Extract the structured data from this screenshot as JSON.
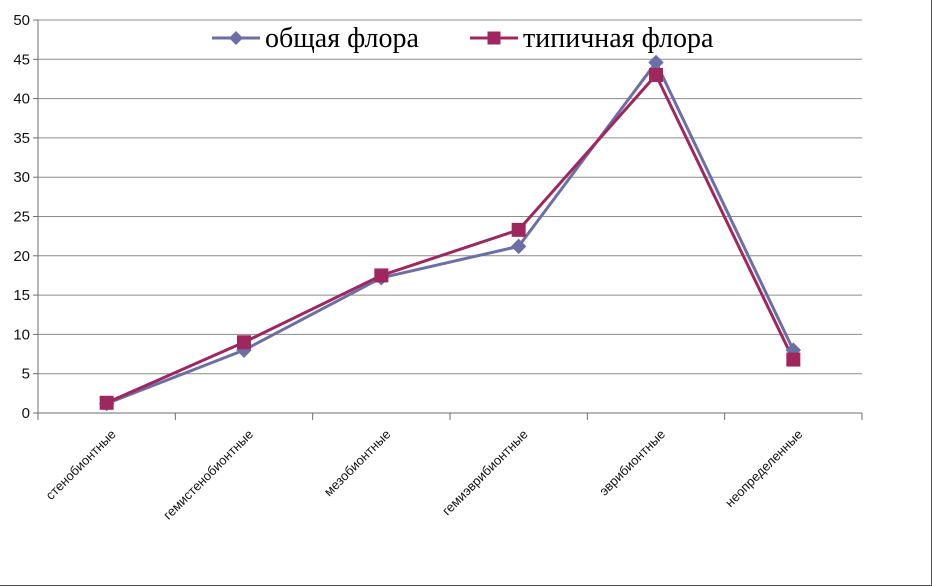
{
  "chart_data": {
    "type": "line",
    "title": "",
    "xlabel": "",
    "ylabel": "",
    "ylim": [
      0,
      50
    ],
    "yticks": [
      0,
      5,
      10,
      15,
      20,
      25,
      30,
      35,
      40,
      45,
      50
    ],
    "grid": true,
    "legend_position": "top",
    "categories": [
      "стенобионтные",
      "гемистенобионтные",
      "мезобионтные",
      "гемиэврибионтные",
      "эврибионтные",
      "неопределенные"
    ],
    "series": [
      {
        "name": "общая флора",
        "color": "#6B6FA6",
        "marker": "diamond",
        "values": [
          1.2,
          8.0,
          17.2,
          21.2,
          44.6,
          8.0
        ]
      },
      {
        "name": "типичная флора",
        "color": "#A0265E",
        "marker": "square",
        "values": [
          1.3,
          9.0,
          17.5,
          23.3,
          43.0,
          6.8
        ]
      }
    ]
  }
}
